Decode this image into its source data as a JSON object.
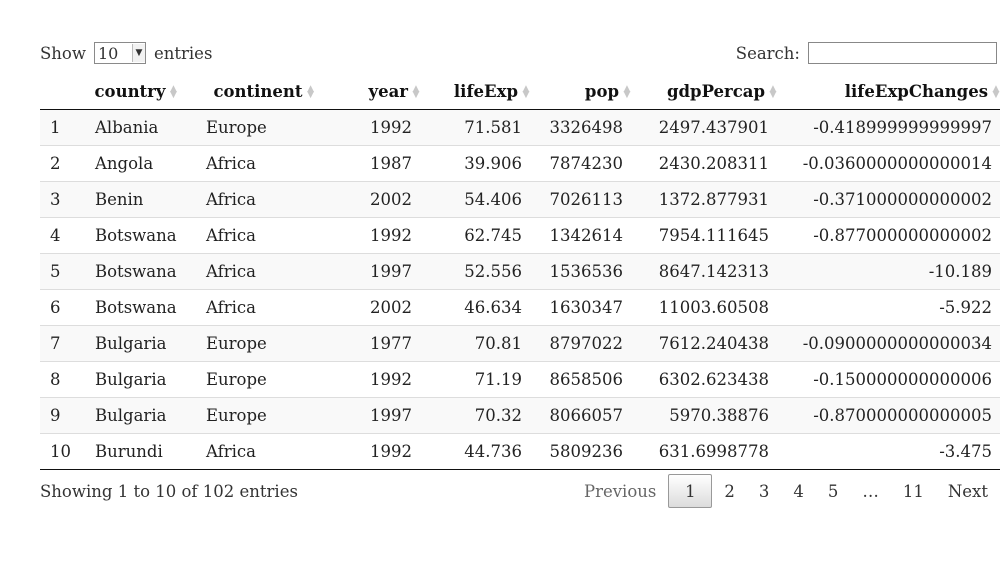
{
  "length_menu": {
    "label_before": "Show",
    "selected": "10",
    "label_after": "entries"
  },
  "search": {
    "label": "Search:",
    "value": ""
  },
  "columns": [
    "",
    "country",
    "continent",
    "year",
    "lifeExp",
    "pop",
    "gdpPercap",
    "lifeExpChanges"
  ],
  "rows": [
    [
      "1",
      "Albania",
      "Europe",
      "1992",
      "71.581",
      "3326498",
      "2497.437901",
      "-0.418999999999997"
    ],
    [
      "2",
      "Angola",
      "Africa",
      "1987",
      "39.906",
      "7874230",
      "2430.208311",
      "-0.0360000000000014"
    ],
    [
      "3",
      "Benin",
      "Africa",
      "2002",
      "54.406",
      "7026113",
      "1372.877931",
      "-0.371000000000002"
    ],
    [
      "4",
      "Botswana",
      "Africa",
      "1992",
      "62.745",
      "1342614",
      "7954.111645",
      "-0.877000000000002"
    ],
    [
      "5",
      "Botswana",
      "Africa",
      "1997",
      "52.556",
      "1536536",
      "8647.142313",
      "-10.189"
    ],
    [
      "6",
      "Botswana",
      "Africa",
      "2002",
      "46.634",
      "1630347",
      "11003.60508",
      "-5.922"
    ],
    [
      "7",
      "Bulgaria",
      "Europe",
      "1977",
      "70.81",
      "8797022",
      "7612.240438",
      "-0.0900000000000034"
    ],
    [
      "8",
      "Bulgaria",
      "Europe",
      "1992",
      "71.19",
      "8658506",
      "6302.623438",
      "-0.150000000000006"
    ],
    [
      "9",
      "Bulgaria",
      "Europe",
      "1997",
      "70.32",
      "8066057",
      "5970.38876",
      "-0.870000000000005"
    ],
    [
      "10",
      "Burundi",
      "Africa",
      "1992",
      "44.736",
      "5809236",
      "631.6998778",
      "-3.475"
    ]
  ],
  "info": "Showing 1 to 10 of 102 entries",
  "pagination": {
    "previous": "Previous",
    "pages": [
      "1",
      "2",
      "3",
      "4",
      "5"
    ],
    "ellipsis": "…",
    "last": "11",
    "next": "Next",
    "current": "1"
  }
}
